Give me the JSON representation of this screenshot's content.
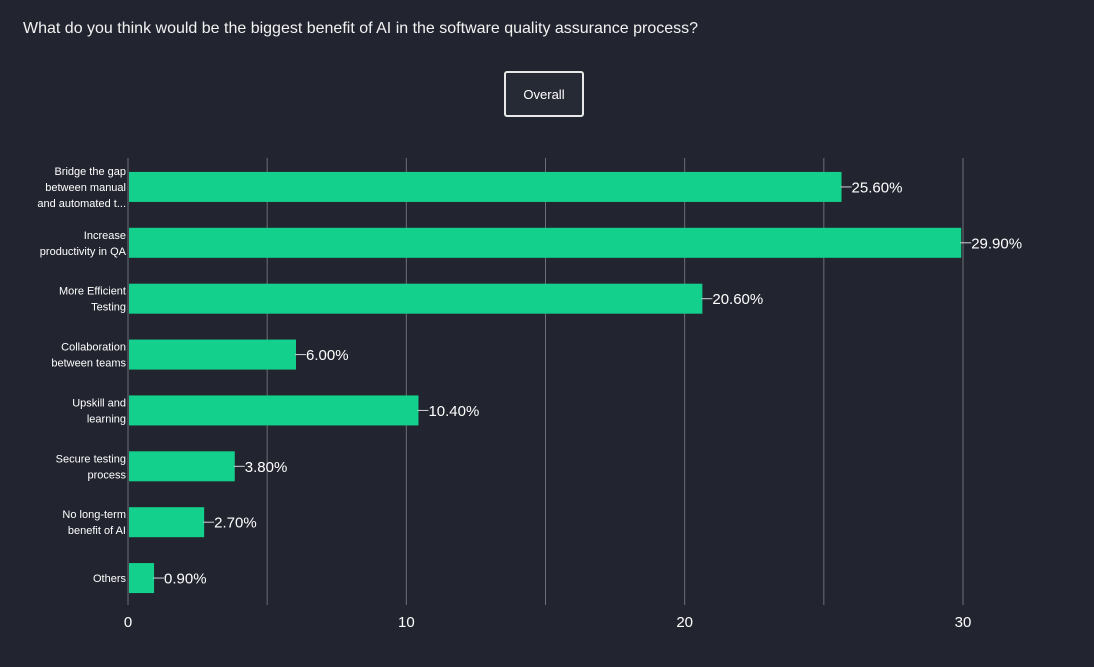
{
  "question": "What do you think would be the biggest benefit of AI in the software quality assurance process?",
  "filter_button": "Overall",
  "colors": {
    "background": "#22252f",
    "bar": "#13d18c",
    "grid": "#6b6e76",
    "text": "#ffffff"
  },
  "chart_data": {
    "type": "bar",
    "orientation": "horizontal",
    "categories": [
      [
        "Bridge the gap",
        "between manual",
        "and automated t..."
      ],
      [
        "Increase",
        "productivity in QA"
      ],
      [
        "More Efficient",
        "Testing"
      ],
      [
        "Collaboration",
        "between teams"
      ],
      [
        "Upskill and",
        "learning"
      ],
      [
        "Secure testing",
        "process"
      ],
      [
        "No long-term",
        "benefit of AI"
      ],
      [
        "Others"
      ]
    ],
    "values": [
      25.6,
      29.9,
      20.6,
      6.0,
      10.4,
      3.8,
      2.7,
      0.9
    ],
    "data_labels": [
      "25.60%",
      "29.90%",
      "20.60%",
      "6.00%",
      "10.40%",
      "3.80%",
      "2.70%",
      "0.90%"
    ],
    "xlim": [
      0,
      30
    ],
    "x_ticks": [
      "0",
      "10",
      "20",
      "30"
    ],
    "x_tick_values": [
      0,
      10,
      20,
      30
    ],
    "gridline_values": [
      0,
      5,
      10,
      15,
      20,
      25,
      30
    ],
    "grid": true,
    "legend": "none"
  }
}
